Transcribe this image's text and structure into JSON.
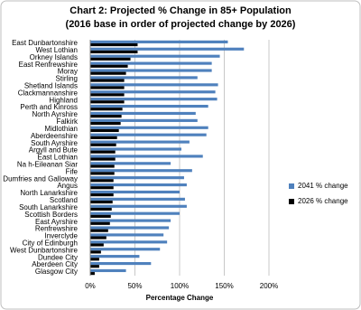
{
  "chart_data": {
    "type": "bar",
    "orientation": "horizontal",
    "title": "Chart 2: Projected % Change in 85+ Population",
    "subtitle": "(2016 base in order of projected change by 2026)",
    "x_label": "Percentage Change",
    "categories": [
      "East Dunbartonshire",
      "West Lothian",
      "Orkney Islands",
      "East Renfrewshire",
      "Moray",
      "Stirling",
      "Shetland Islands",
      "Clackmannanshire",
      "Highland",
      "Perth and Kinross",
      "North Ayrshire",
      "Falkirk",
      "Midlothian",
      "Aberdeenshire",
      "South Ayrshire",
      "Argyll and Bute",
      "East Lothian",
      "Na h-Eileanan Siar",
      "Fife",
      "Dumfries and Galloway",
      "Angus",
      "North Lanarkshire",
      "Scotland",
      "South Lanarkshire",
      "Scottish Borders",
      "East Ayrshire",
      "Renfrewshire",
      "Inverclyde",
      "City of Edinburgh",
      "West Dunbartonshire",
      "Dundee City",
      "Aberdeen City",
      "Glasgow City"
    ],
    "series": [
      {
        "name": "2041 % change",
        "color": "#4f81bd",
        "values": [
          154,
          172,
          145,
          136,
          136,
          120,
          143,
          140,
          142,
          132,
          118,
          120,
          132,
          130,
          111,
          102,
          126,
          90,
          114,
          105,
          108,
          100,
          106,
          108,
          100,
          90,
          88,
          82,
          86,
          78,
          55,
          68,
          40
        ]
      },
      {
        "name": "2026 % change",
        "color": "#000000",
        "values": [
          53,
          53,
          45,
          42,
          40,
          38,
          38,
          38,
          38,
          36,
          35,
          34,
          32,
          30,
          29,
          28,
          28,
          27,
          27,
          26,
          26,
          26,
          25,
          24,
          23,
          22,
          20,
          18,
          15,
          12,
          10,
          10,
          5
        ]
      }
    ],
    "xlim": [
      0,
      200
    ],
    "xticks": [
      {
        "value": 0,
        "label": "0%"
      },
      {
        "value": 50,
        "label": "50%"
      },
      {
        "value": 100,
        "label": "100%"
      },
      {
        "value": 150,
        "label": "150%"
      },
      {
        "value": 200,
        "label": "200%"
      }
    ],
    "grid": true,
    "legend": "right"
  }
}
